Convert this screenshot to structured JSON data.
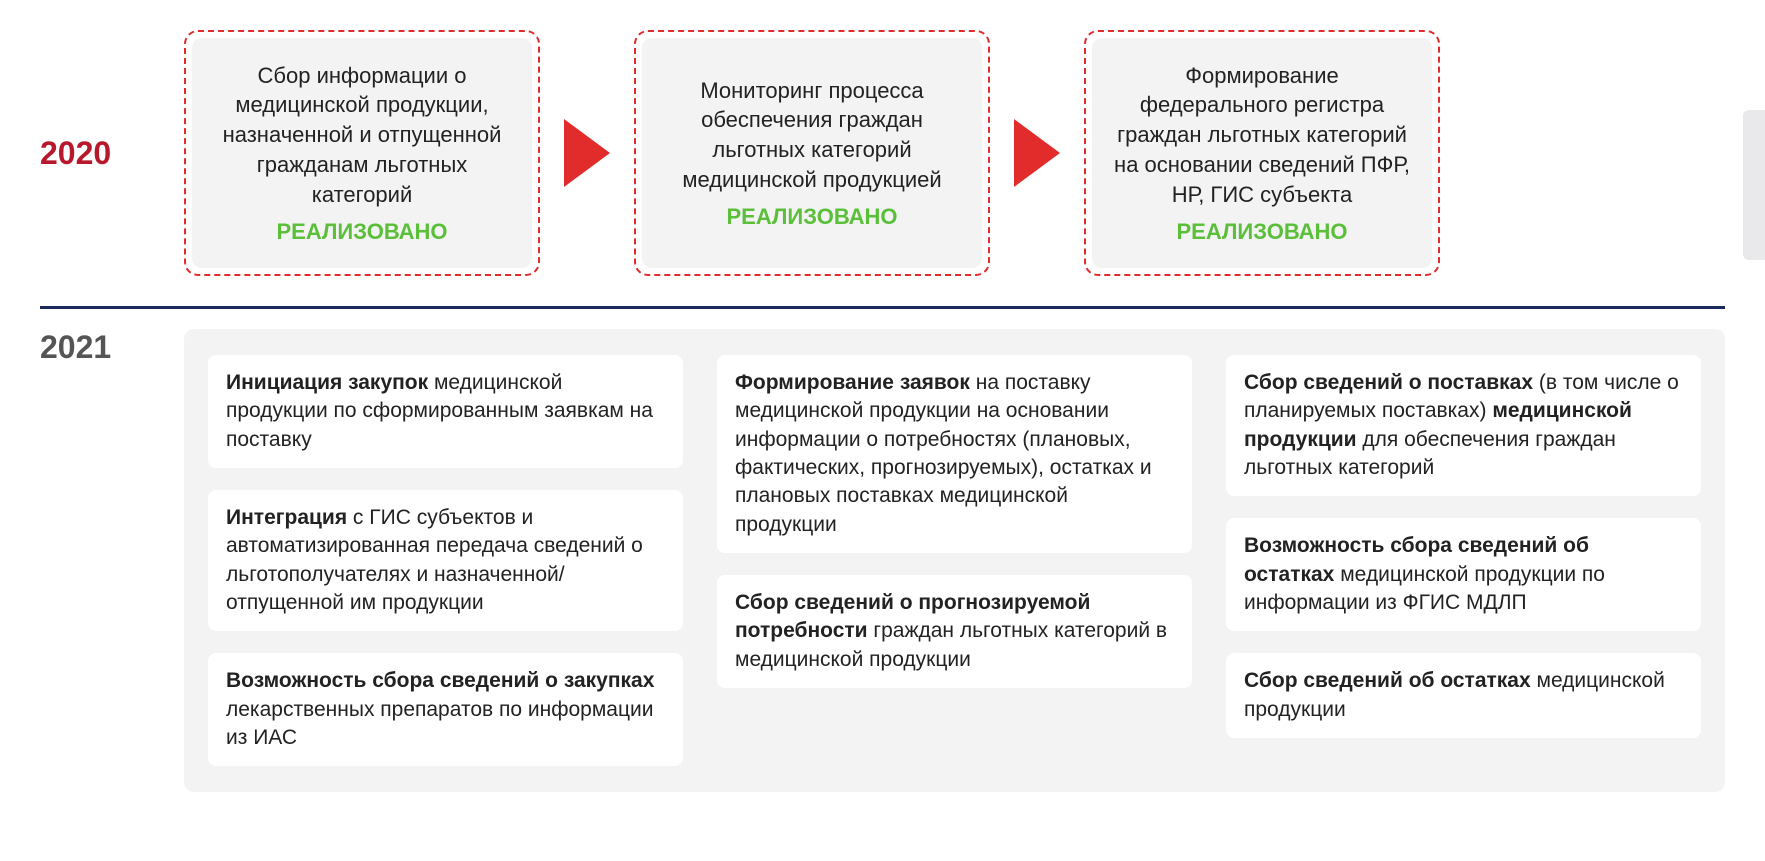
{
  "colors": {
    "accent_red": "#e22b2b",
    "status_green": "#5bbf3a",
    "divider": "#1a2a5a",
    "panel_bg": "#f3f3f4",
    "card_bg": "#ffffff",
    "year2020_color": "#b7182b",
    "year2021_color": "#555555"
  },
  "typography": {
    "base_font": "Arial",
    "year_fontsize_pt": 24,
    "box_fontsize_pt": 17,
    "card_fontsize_pt": 16
  },
  "section2020": {
    "year": "2020",
    "boxes": [
      {
        "text": "Сбор информации о медицинской продукции, назначенной и отпущенной гражданам льготных категорий",
        "status": "РЕАЛИЗОВАНО"
      },
      {
        "text": "Мониторинг процесса обеспечения граждан льготных категорий медицинской продукцией",
        "status": "РЕАЛИЗОВАНО"
      },
      {
        "text": "Формирование федерального регистра граждан льготных категорий на основании сведений ПФР, НР, ГИС субъекта",
        "status": "РЕАЛИЗОВАНО"
      }
    ]
  },
  "section2021": {
    "year": "2021",
    "columns": [
      [
        {
          "bold": "Инициация закупок",
          "rest": " медицинской продукции по сформированным заявкам на поставку"
        },
        {
          "bold": "Интеграция",
          "rest": " с ГИС субъектов и автоматизированная передача сведений о льготополучателях и назначенной/ отпущенной им продукции"
        },
        {
          "bold": "Возможность сбора сведений о закупках",
          "rest": " лекарственных препаратов по информации из ИАС"
        }
      ],
      [
        {
          "bold": "Формирование заявок",
          "rest": " на поставку медицинской продукции на основании информации о потребностях (плановых, фактических, прогнозируемых), остатках и плановых поставках медицинской продукции"
        },
        {
          "bold": "Сбор сведений о прогнозируемой потребности",
          "rest": " граждан льготных категорий в медицинской продукции"
        }
      ],
      [
        {
          "bold": "Сбор сведений о поставках",
          "rest": " (в том числе о планируемых поставках) ",
          "bold2": "медицинской продукции",
          "rest2": " для обеспечения граждан льготных категорий"
        },
        {
          "bold": "Возможность сбора сведений об остатках",
          "rest": " медицинской продукции по информации из ФГИС МДЛП"
        },
        {
          "bold": "Сбор сведений об остатках",
          "rest": " медицинской продукции"
        }
      ]
    ]
  }
}
